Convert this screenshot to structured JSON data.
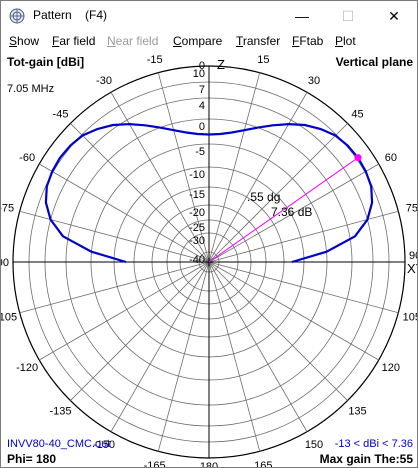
{
  "window": {
    "title": "Pattern",
    "hotkey": "(F4)",
    "buttons": {
      "minimize": "—",
      "maximize": "☐",
      "close": "✕"
    }
  },
  "menu": [
    {
      "label": "Show",
      "accel": "S",
      "disabled": false
    },
    {
      "label": "Far field",
      "accel": "F",
      "disabled": false
    },
    {
      "label": "Near field",
      "accel": "N",
      "disabled": true
    },
    {
      "label": "Compare",
      "accel": "C",
      "disabled": false
    },
    {
      "label": "Transfer",
      "accel": "T",
      "disabled": false
    },
    {
      "label": "FFtab",
      "accel": "F",
      "disabled": false
    },
    {
      "label": "Plot",
      "accel": "P",
      "disabled": false
    }
  ],
  "plot": {
    "top_left": "Tot-gain [dBi]",
    "top_right": "Vertical plane",
    "frequency": "7.05 MHz",
    "filename": "INVV80-40_CMC.out",
    "phi": "Phi= 180",
    "range": "-13 < dBi < 7.36",
    "max_gain": "Max gain The:55",
    "axis_z": "Z",
    "axis_xy": "XY",
    "cursor_angle": "55 dg",
    "cursor_gain": "7.36 dB",
    "angle_labels": [
      "0",
      "15",
      "30",
      "45",
      "60",
      "75",
      "90",
      "105",
      "120",
      "135",
      "150",
      "165",
      "180",
      "-165",
      "-150",
      "-135",
      "-120",
      "-105",
      "-90",
      "-75",
      "-60",
      "-45",
      "-30",
      "-15"
    ],
    "gain_labels": [
      "10",
      "7",
      "4",
      "0",
      "-5",
      "-10",
      "-15",
      "-20",
      "-25",
      "-30",
      "-40"
    ],
    "colors": {
      "grid": "#6e6e6e",
      "trace": "#0000cc",
      "cursor": "#ff00ff",
      "text_blue": "#0000cc"
    }
  },
  "chart_data": {
    "type": "line",
    "title": "Vertical plane",
    "ylabel": "Tot-gain [dBi]",
    "units": "dBi",
    "gain_rings": [
      7,
      4,
      0,
      -5,
      -10,
      -15,
      -20,
      -25,
      -30,
      -40
    ],
    "series": [
      {
        "theta_deg": [
          90,
          85,
          80,
          75,
          70,
          65,
          60,
          55,
          50,
          45,
          40,
          35,
          30,
          25,
          20,
          15,
          10,
          5,
          0,
          -5,
          -10,
          -15,
          -20,
          -25,
          -30,
          -35,
          -40,
          -45,
          -50,
          -55,
          -60,
          -65,
          -70,
          -75,
          -80,
          -85,
          -90
        ],
        "gain_dbi": [
          -13,
          -5,
          1,
          4,
          5.8,
          6.8,
          7.2,
          7.36,
          7.2,
          6.8,
          5.8,
          4.6,
          3.1,
          1.5,
          0,
          -1.3,
          -2.3,
          -2.9,
          -3.1,
          -2.9,
          -2.3,
          -1.3,
          0,
          1.5,
          3.1,
          4.6,
          5.8,
          6.8,
          7.2,
          7.36,
          7.2,
          6.8,
          5.8,
          4,
          1,
          -5,
          -13
        ]
      }
    ],
    "max_gain_dbi": 7.36,
    "max_gain_theta_deg": 55,
    "min_gain_dbi": -13
  }
}
